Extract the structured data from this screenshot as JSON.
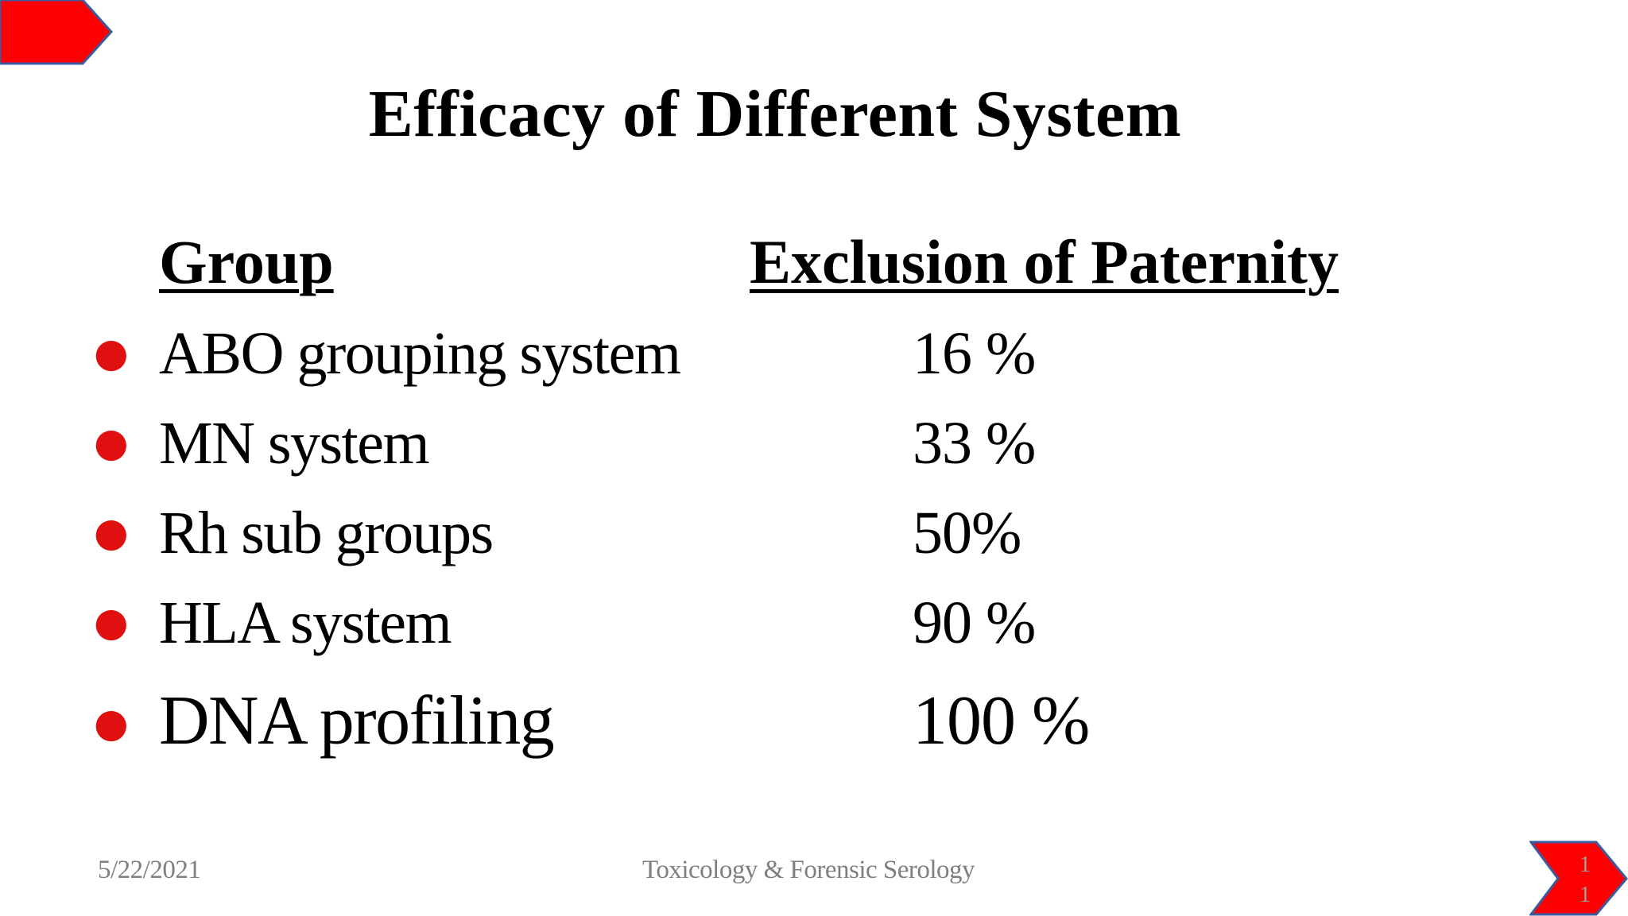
{
  "slide": {
    "title": "Efficacy of Different System",
    "headers": {
      "group": "Group",
      "exclusion": "Exclusion of Paternity"
    },
    "rows": [
      {
        "group": "ABO grouping system",
        "exclusion": "16 %"
      },
      {
        "group": "MN system",
        "exclusion": "33 %"
      },
      {
        "group": "Rh sub groups",
        "exclusion": "50%"
      },
      {
        "group": "HLA system",
        "exclusion": "90 %"
      },
      {
        "group": "DNA profiling",
        "exclusion": "100 %"
      }
    ],
    "footer": {
      "date": "5/22/2021",
      "center": "Toxicology & Forensic Serology",
      "slide_number": "11"
    }
  },
  "colors": {
    "accent_red": "#ff0000",
    "accent_blue": "#3b5aa0",
    "bullet_red": "#e01010",
    "footer_gray": "#7f7f7f"
  },
  "icons": {
    "top_left": "red-chevron-arrow-icon",
    "bottom_right": "red-chevron-arrow-icon"
  }
}
